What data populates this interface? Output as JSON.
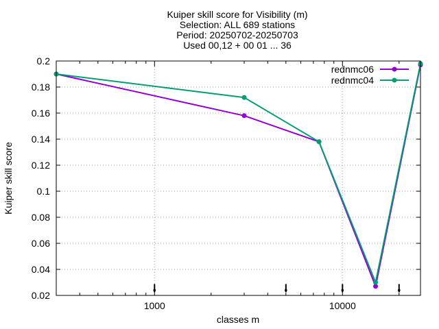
{
  "chart_data": {
    "type": "line",
    "title_lines": [
      "Kuiper skill score  for Visibility (m)",
      "Selection: ALL    689 stations",
      "Period: 20250702-20250703",
      "Used 00,12 + 00 01 ... 36"
    ],
    "xlabel": "classes m",
    "ylabel": "Kuiper skill score",
    "xscale": "log",
    "xlim": [
      300,
      26000
    ],
    "ylim": [
      0.02,
      0.2
    ],
    "xticks": [
      {
        "value": 1000,
        "label": "1000"
      },
      {
        "value": 10000,
        "label": "10000"
      }
    ],
    "yticks": [
      {
        "value": 0.02,
        "label": "0.02"
      },
      {
        "value": 0.04,
        "label": "0.04"
      },
      {
        "value": 0.06,
        "label": "0.06"
      },
      {
        "value": 0.08,
        "label": "0.08"
      },
      {
        "value": 0.1,
        "label": "0.1"
      },
      {
        "value": 0.12,
        "label": "0.12"
      },
      {
        "value": 0.14,
        "label": "0.14"
      },
      {
        "value": 0.16,
        "label": "0.16"
      },
      {
        "value": 0.18,
        "label": "0.18"
      },
      {
        "value": 0.2,
        "label": "0.2"
      }
    ],
    "grid": true,
    "legend_position": "top-right",
    "series": [
      {
        "name": "rednmc06",
        "color": "#9400d3",
        "x": [
          300,
          3000,
          7500,
          15000,
          26000
        ],
        "y": [
          0.19,
          0.158,
          0.138,
          0.027,
          0.197
        ]
      },
      {
        "name": "rednmc04",
        "color": "#009e73",
        "x": [
          300,
          3000,
          7500,
          15000,
          26000
        ],
        "y": [
          0.19,
          0.172,
          0.138,
          0.03,
          0.198
        ]
      }
    ],
    "markers_x": [
      1000,
      5000,
      10000,
      20000
    ],
    "markers_y": 0.024
  }
}
